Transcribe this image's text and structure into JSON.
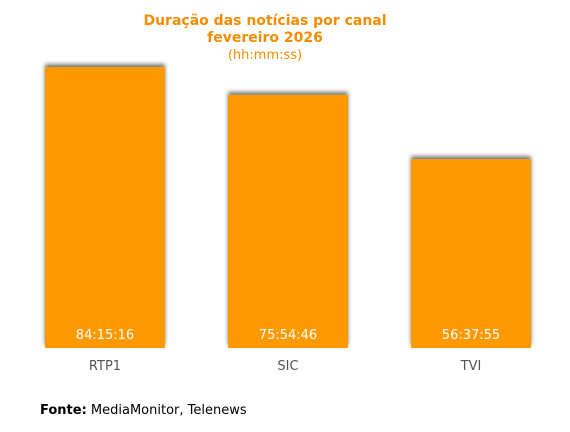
{
  "chart_data": {
    "type": "bar",
    "title": "Duração das notícias por canal",
    "subtitle": "fevereiro 2026",
    "unit_label": "(hh:mm:ss)",
    "categories": [
      "RTP1",
      "SIC",
      "TVI"
    ],
    "values": [
      84.2544,
      75.9128,
      56.6319
    ],
    "value_labels": [
      "84:15:16",
      "75:54:46",
      "56:37:55"
    ],
    "value_unit": "hours",
    "ylim": [
      0,
      90
    ],
    "grid": false,
    "legend": "none",
    "bar_color": "#ff9900",
    "title_color": "#f28c00"
  },
  "footer": {
    "source_label": "Fonte:",
    "source_text": "MediaMonitor, Telenews"
  }
}
